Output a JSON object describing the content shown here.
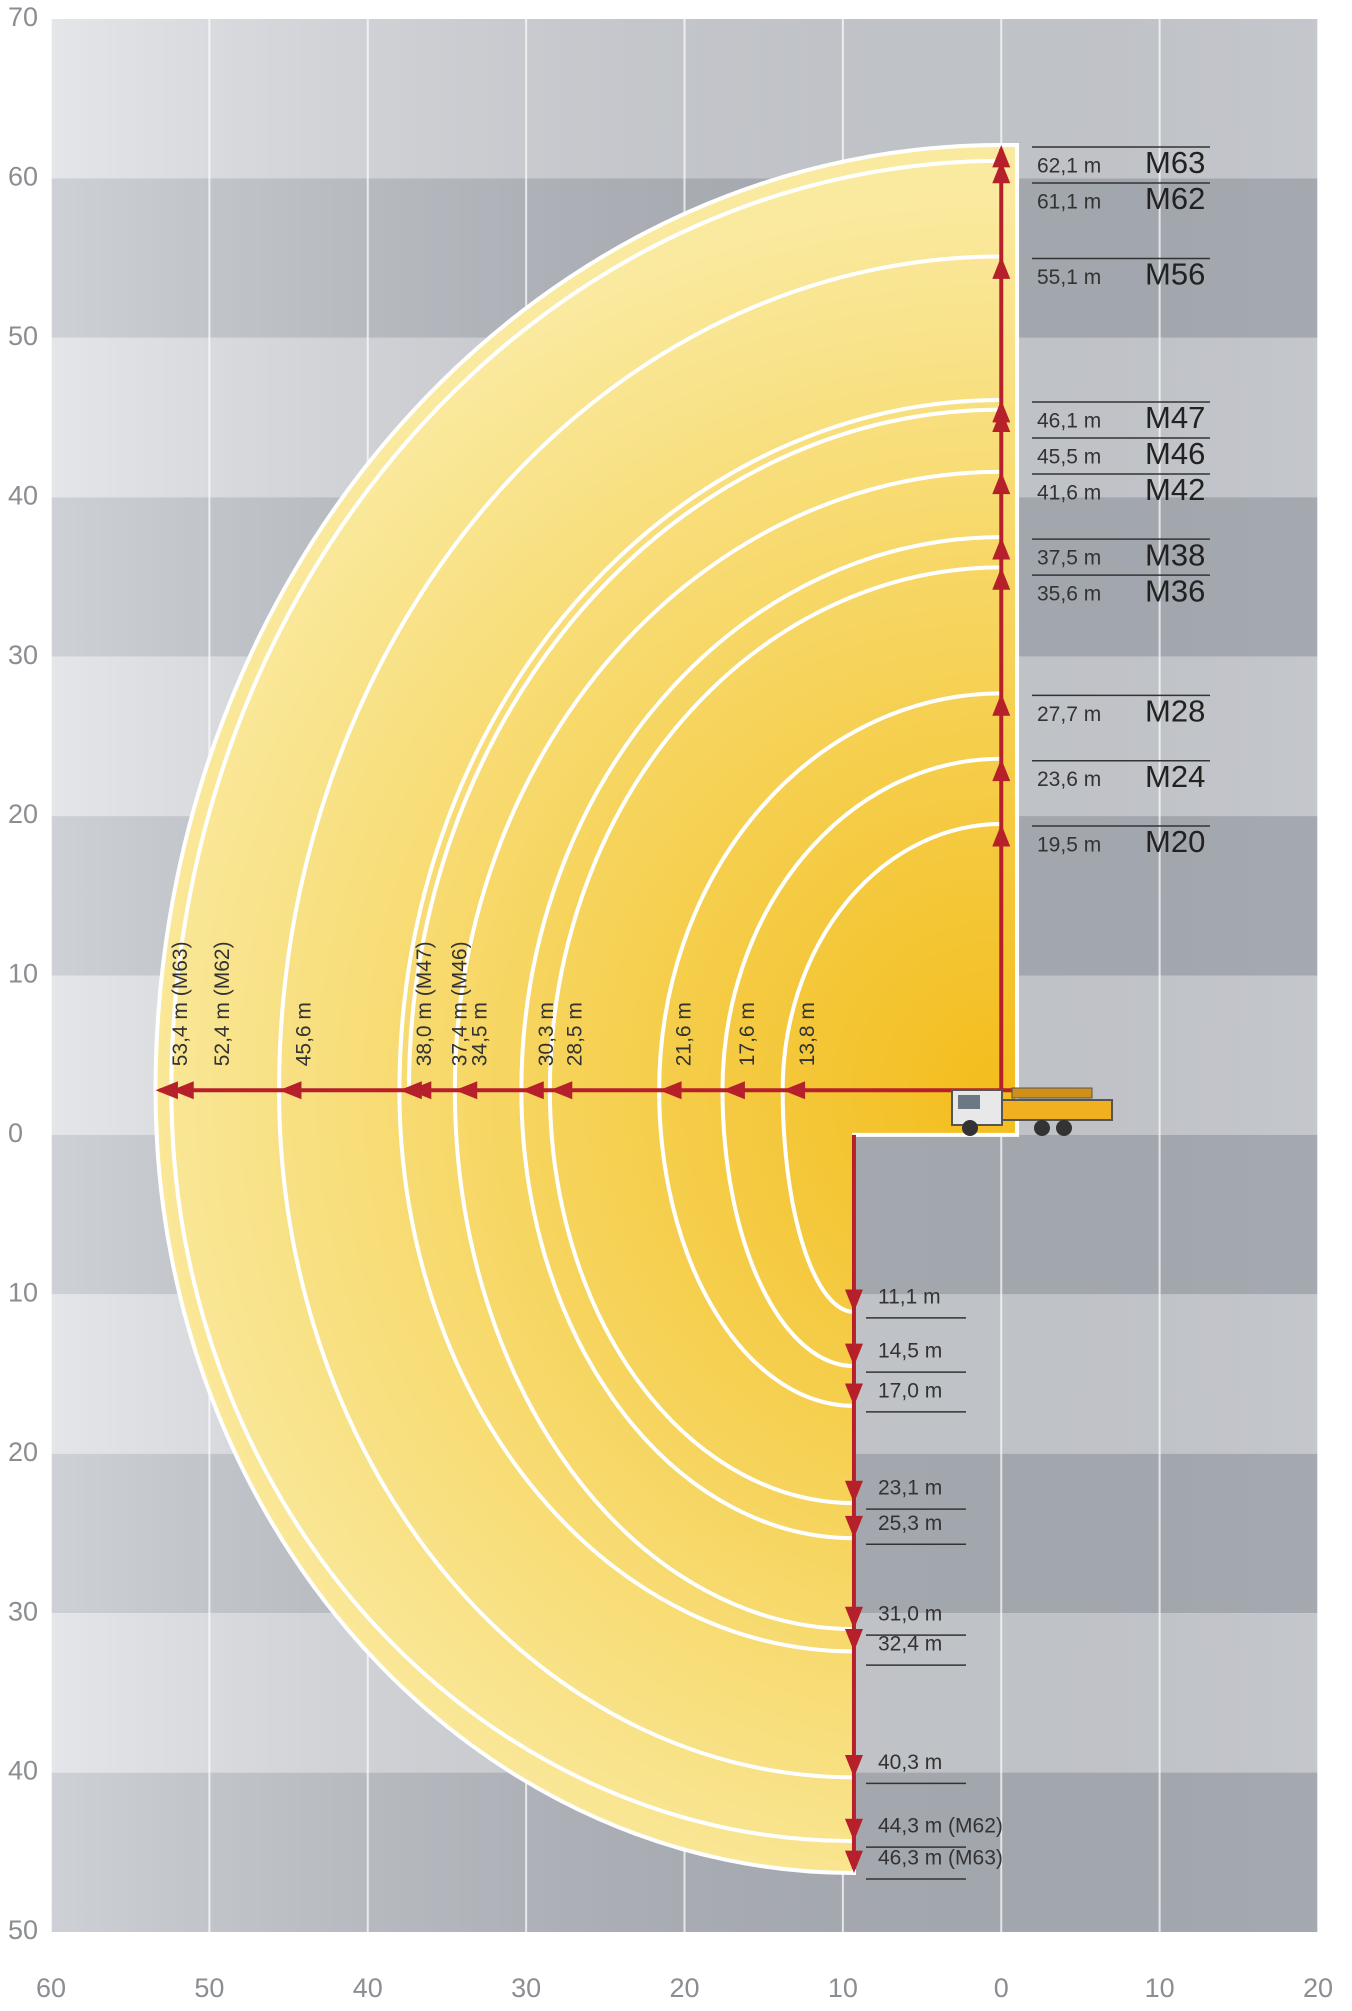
{
  "chart_data": {
    "type": "reach-diagram",
    "xlim": [
      60,
      -20
    ],
    "ylim": [
      -50,
      70
    ],
    "xticks": [
      60,
      50,
      40,
      30,
      20,
      10,
      0,
      {
        "value": -10,
        "label": "10"
      },
      {
        "value": -20,
        "label": "20"
      }
    ],
    "yticks": [
      70,
      60,
      50,
      40,
      30,
      20,
      10,
      0,
      {
        "value": -10,
        "label": "10"
      },
      {
        "value": -20,
        "label": "20"
      },
      {
        "value": -30,
        "label": "30"
      },
      {
        "value": -40,
        "label": "40"
      },
      {
        "value": -50,
        "label": "50"
      }
    ],
    "grid": true,
    "fill_color": "#f5c93a",
    "arrow_color": "#b5202b",
    "heights": {
      "models": [
        "M63",
        "M62",
        "M56",
        "M47",
        "M46",
        "M42",
        "M38",
        "M36",
        "M28",
        "M24",
        "M20"
      ],
      "values": [
        62.1,
        61.1,
        55.1,
        46.1,
        45.5,
        41.6,
        37.5,
        35.6,
        27.7,
        23.6,
        19.5
      ],
      "value_labels": [
        "62,1 m",
        "61,1 m",
        "55,1 m",
        "46,1 m",
        "45,5 m",
        "41,6 m",
        "37,5 m",
        "35,6 m",
        "27,7 m",
        "23,6 m",
        "19,5 m"
      ]
    },
    "reaches": {
      "values": [
        53.4,
        52.4,
        45.6,
        38.0,
        37.4,
        34.5,
        30.3,
        28.5,
        21.6,
        17.6,
        13.8
      ],
      "value_labels": [
        "53,4 m (M63)",
        "52,4 m (M62)",
        "45,6 m",
        "38,0 m (M47)",
        "37,4 m (M46)",
        "34,5 m",
        "30,3 m",
        "28,5 m",
        "21,6 m",
        "17,6 m",
        "13,8 m"
      ]
    },
    "depths": {
      "values": [
        46.3,
        44.3,
        40.3,
        32.4,
        31.0,
        25.3,
        23.1,
        17.0,
        14.5,
        11.1
      ],
      "value_labels": [
        "46,3 m (M63)",
        "44,3 m (M62)",
        "40,3 m",
        "32,4 m",
        "31,0 m",
        "25,3 m",
        "23,1 m",
        "17,0 m",
        "14,5 m",
        "11,1 m"
      ]
    }
  }
}
